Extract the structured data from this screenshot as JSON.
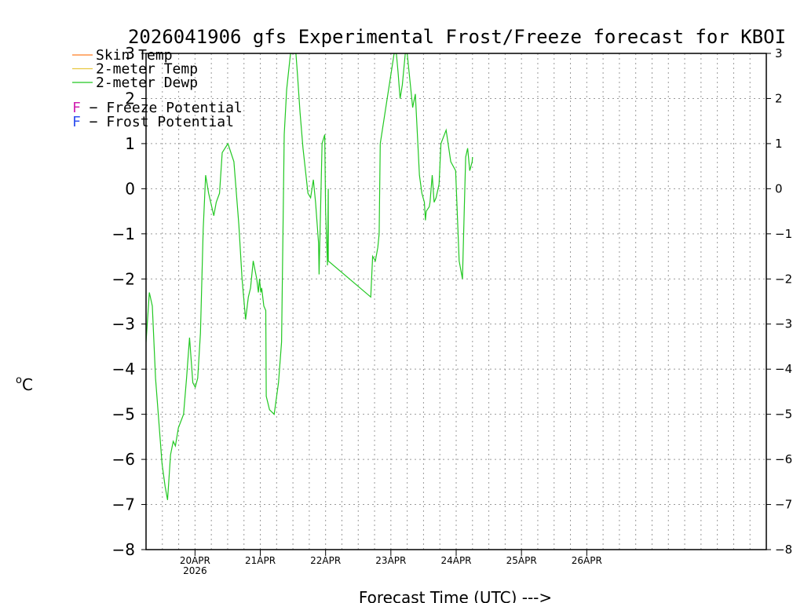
{
  "chart_data": {
    "type": "line",
    "title": "2026041906 gfs Experimental Frost/Freeze forecast for KBOI",
    "xlabel": "Forecast Time (UTC) --->",
    "ylabel": "°C",
    "ylabel_unit": "C",
    "ylabel_degree": "o",
    "ylim": [
      -8,
      3
    ],
    "yticks": [
      3,
      2,
      1,
      0,
      -1,
      -2,
      -3,
      -4,
      -5,
      -6,
      -7,
      -8
    ],
    "yticks_labels": [
      "3",
      "2",
      "1",
      "0",
      "−1",
      "−2",
      "−3",
      "−4",
      "−5",
      "−6",
      "−7",
      "−8"
    ],
    "xlim_hours": [
      6,
      234
    ],
    "xticks": [
      {
        "hour": 24,
        "label": "20APR",
        "sublabel": "2026"
      },
      {
        "hour": 48,
        "label": "21APR",
        "sublabel": ""
      },
      {
        "hour": 72,
        "label": "22APR",
        "sublabel": ""
      },
      {
        "hour": 96,
        "label": "23APR",
        "sublabel": ""
      },
      {
        "hour": 120,
        "label": "24APR",
        "sublabel": ""
      },
      {
        "hour": 144,
        "label": "25APR",
        "sublabel": ""
      },
      {
        "hour": 168,
        "label": "26APR",
        "sublabel": ""
      }
    ],
    "legend": {
      "placement": "top-left",
      "entries": [
        {
          "name": "Skin Temp",
          "color": "#ff7f24"
        },
        {
          "name": "2-meter Temp",
          "color": "#e8c840"
        },
        {
          "name": "2-meter Dewp",
          "color": "#22c822"
        }
      ],
      "markers": [
        {
          "letter": "F",
          "text": " − Freeze Potential",
          "color": "#d020b0"
        },
        {
          "letter": "F",
          "text": " − Frost Potential",
          "color": "#3050f0"
        }
      ]
    },
    "series": [
      {
        "name": "2-meter Dewp",
        "color": "#22c822",
        "x": [
          6.0,
          7.2,
          8.3,
          9.5,
          11.9,
          13.0,
          13.9,
          15.0,
          16.0,
          16.8,
          17.9,
          19.8,
          20.9,
          22.0,
          23.2,
          24.1,
          25.0,
          26.0,
          27.0,
          27.9,
          29.0,
          30.9,
          31.8,
          33.0,
          34.0,
          36.1,
          38.3,
          40.1,
          41.3,
          42.6,
          43.6,
          44.4,
          45.4,
          46.7,
          47.3,
          47.7,
          48.2,
          48.5,
          49.3,
          50.0,
          50.2,
          51.4,
          53.1,
          54.7,
          55.8,
          56.8,
          57.7,
          59.1,
          61.1,
          61.7,
          62.6,
          63.7,
          64.8,
          65.5,
          66.5,
          67.5,
          68.3,
          69.4,
          69.6,
          70.7,
          71.7,
          72.0,
          72.7,
          73.0,
          73.0,
          88.6,
          89.3,
          90.3,
          91.2,
          91.7,
          92.1,
          97.2,
          98.0,
          98.6,
          99.4,
          100.2,
          101.3,
          102.0,
          103.0,
          104.0,
          105.0,
          106.5,
          107.4,
          108.3,
          108.7,
          109.0,
          110.1,
          110.4,
          111.2,
          111.9,
          112.6,
          113.7,
          114.4,
          116.3,
          118.0,
          119.8,
          121.1,
          122.3,
          123.0,
          123.5,
          124.2,
          125.0,
          125.9,
          126.0
        ],
        "y": [
          -3.4,
          -2.3,
          -2.6,
          -4.2,
          -6.1,
          -6.6,
          -6.9,
          -5.9,
          -5.6,
          -5.7,
          -5.3,
          -5.0,
          -4.2,
          -3.3,
          -4.3,
          -4.4,
          -4.2,
          -3.2,
          -0.9,
          0.3,
          -0.1,
          -0.6,
          -0.3,
          -0.1,
          0.8,
          1.0,
          0.6,
          -0.8,
          -2.0,
          -2.9,
          -2.4,
          -2.2,
          -1.6,
          -2.0,
          -2.3,
          -2.0,
          -2.3,
          -2.2,
          -2.6,
          -2.7,
          -4.6,
          -4.9,
          -5.0,
          -4.3,
          -3.4,
          1.2,
          2.2,
          3.0,
          3.0,
          2.5,
          1.7,
          0.9,
          0.3,
          -0.1,
          -0.2,
          0.2,
          -0.3,
          -1.2,
          -1.9,
          1.0,
          1.2,
          -0.5,
          -1.7,
          0.0,
          -1.6,
          -2.4,
          -1.5,
          -1.6,
          -1.3,
          -1.0,
          1.0,
          3.0,
          3.0,
          2.6,
          2.0,
          2.3,
          3.0,
          3.0,
          2.4,
          1.8,
          2.1,
          0.3,
          -0.1,
          -0.3,
          -0.7,
          -0.5,
          -0.4,
          -0.3,
          0.3,
          -0.3,
          -0.2,
          0.1,
          1.0,
          1.3,
          0.6,
          0.4,
          -1.6,
          -2.0,
          -0.4,
          0.7,
          0.9,
          0.4,
          0.6,
          0.7
        ]
      }
    ]
  }
}
